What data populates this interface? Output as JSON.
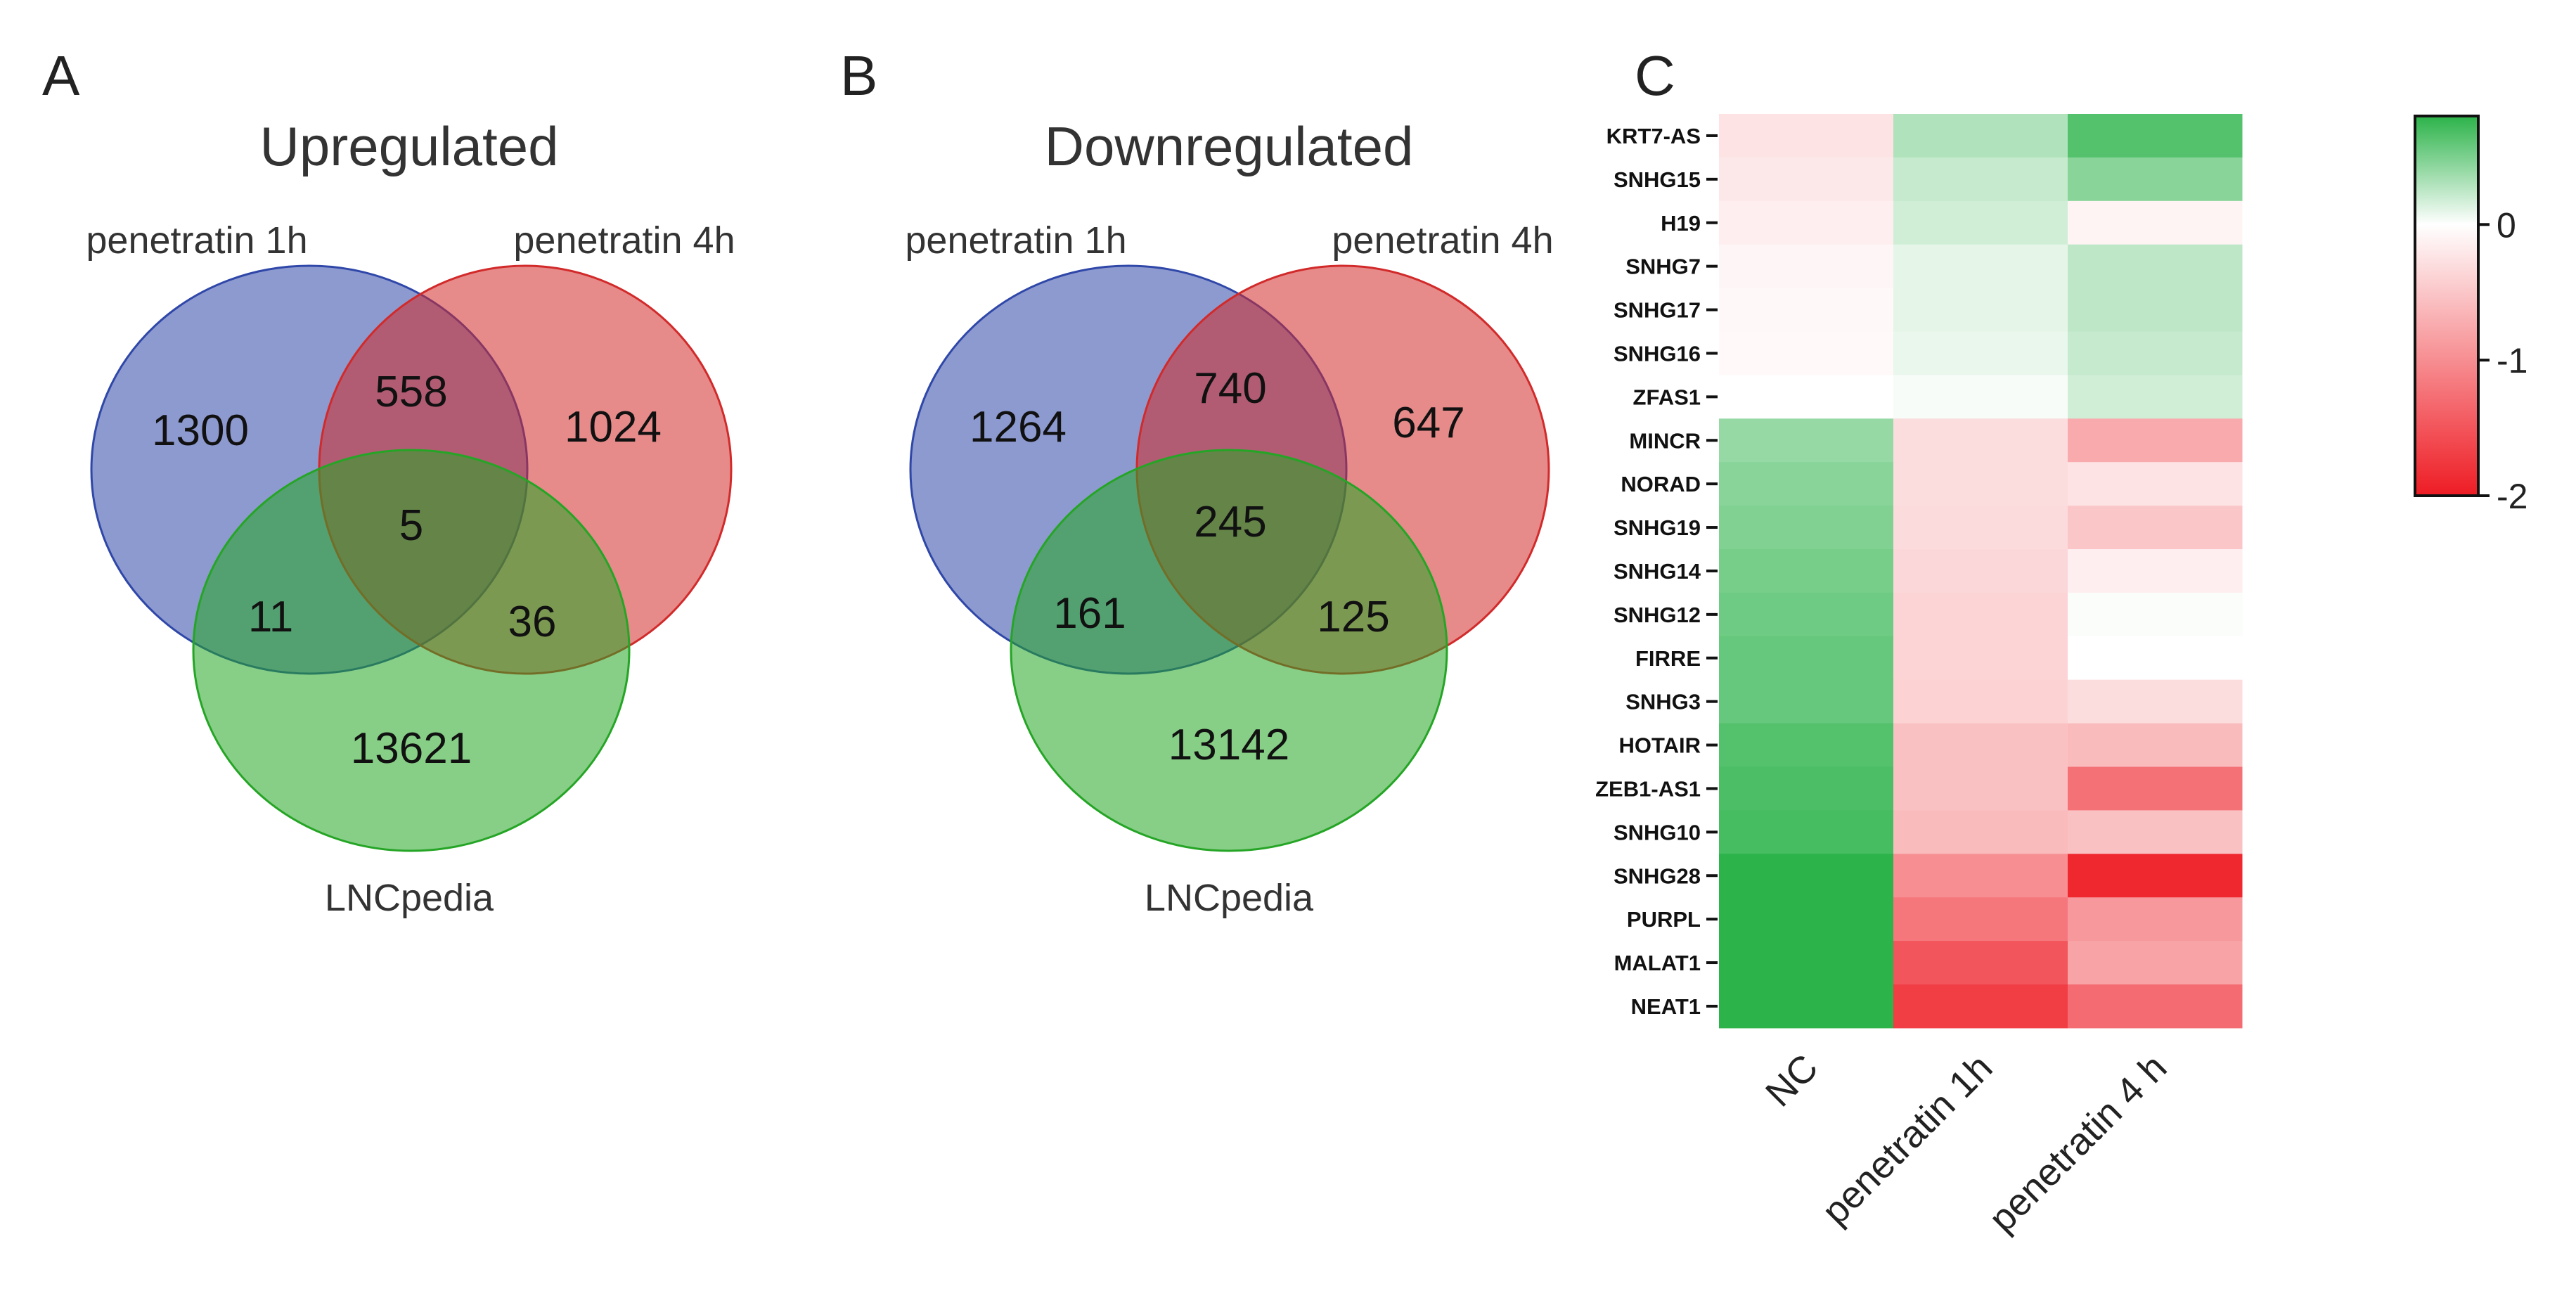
{
  "panels": {
    "A": {
      "letter": "A",
      "title": "Upregulated",
      "set_labels": {
        "pen1h": "penetratin 1h",
        "pen4h": "penetratin 4h",
        "lnc": "LNCpedia"
      },
      "counts": {
        "only_pen1h": "1300",
        "only_pen4h": "1024",
        "only_lnc": "13621",
        "pen1h_pen4h": "558",
        "pen1h_lnc": "11",
        "pen4h_lnc": "36",
        "all": "5"
      }
    },
    "B": {
      "letter": "B",
      "title": "Downregulated",
      "set_labels": {
        "pen1h": "penetratin 1h",
        "pen4h": "penetratin 4h",
        "lnc": "LNCpedia"
      },
      "counts": {
        "only_pen1h": "1264",
        "only_pen4h": "647",
        "only_lnc": "13142",
        "pen1h_pen4h": "740",
        "pen1h_lnc": "161",
        "pen4h_lnc": "125",
        "all": "245"
      }
    },
    "C": {
      "letter": "C"
    }
  },
  "colors": {
    "venn_blue": "#2f47a8",
    "venn_red": "#d22a2a",
    "venn_green": "#25a525",
    "heat_low": "#ee1c24",
    "heat_mid": "#ffffff",
    "heat_high": "#2cb34a"
  },
  "chart_data": [
    {
      "type": "venn",
      "panel": "A",
      "title": "Upregulated",
      "sets": [
        "penetratin 1h",
        "penetratin 4h",
        "LNCpedia"
      ],
      "regions": {
        "penetratin 1h only": 1300,
        "penetratin 4h only": 1024,
        "LNCpedia only": 13621,
        "penetratin 1h & penetratin 4h": 558,
        "penetratin 1h & LNCpedia": 11,
        "penetratin 4h & LNCpedia": 36,
        "all three": 5
      }
    },
    {
      "type": "venn",
      "panel": "B",
      "title": "Downregulated",
      "sets": [
        "penetratin 1h",
        "penetratin 4h",
        "LNCpedia"
      ],
      "regions": {
        "penetratin 1h only": 1264,
        "penetratin 4h only": 647,
        "LNCpedia only": 13142,
        "penetratin 1h & penetratin 4h": 740,
        "penetratin 1h & LNCpedia": 161,
        "penetratin 4h & LNCpedia": 125,
        "all three": 245
      }
    },
    {
      "type": "heatmap",
      "panel": "C",
      "columns": [
        "NC",
        "penetratin 1h",
        "penetratin 4 h"
      ],
      "rows": [
        "KRT7-AS",
        "SNHG15",
        "H19",
        "SNHG7",
        "SNHG17",
        "SNHG16",
        "ZFAS1",
        "MINCR",
        "NORAD",
        "SNHG19",
        "SNHG14",
        "SNHG12",
        "FIRRE",
        "SNHG3",
        "HOTAIR",
        "ZEB1-AS1",
        "SNHG10",
        "SNHG28",
        "PURPL",
        "MALAT1",
        "NEAT1"
      ],
      "values": [
        [
          -0.25,
          0.3,
          0.65
        ],
        [
          -0.2,
          0.22,
          0.45
        ],
        [
          -0.15,
          0.18,
          -0.1
        ],
        [
          -0.08,
          0.1,
          0.25
        ],
        [
          -0.06,
          0.1,
          0.25
        ],
        [
          -0.05,
          0.08,
          0.22
        ],
        [
          0.0,
          0.03,
          0.18
        ],
        [
          0.4,
          -0.3,
          -0.75
        ],
        [
          0.45,
          -0.3,
          -0.25
        ],
        [
          0.48,
          -0.32,
          -0.5
        ],
        [
          0.52,
          -0.35,
          -0.15
        ],
        [
          0.55,
          -0.38,
          0.02
        ],
        [
          0.58,
          -0.38,
          0.0
        ],
        [
          0.58,
          -0.4,
          -0.3
        ],
        [
          0.65,
          -0.55,
          -0.6
        ],
        [
          0.68,
          -0.55,
          -1.25
        ],
        [
          0.7,
          -0.6,
          -0.55
        ],
        [
          0.8,
          -1.0,
          -1.9
        ],
        [
          0.82,
          -1.2,
          -0.9
        ],
        [
          0.9,
          -1.5,
          -0.8
        ],
        [
          0.92,
          -1.7,
          -1.3
        ]
      ],
      "colorbar": {
        "min": -2,
        "max": 0.8,
        "ticks": [
          0,
          -1,
          -2
        ],
        "tick_labels": [
          "0",
          "-1",
          "-2"
        ]
      }
    }
  ]
}
